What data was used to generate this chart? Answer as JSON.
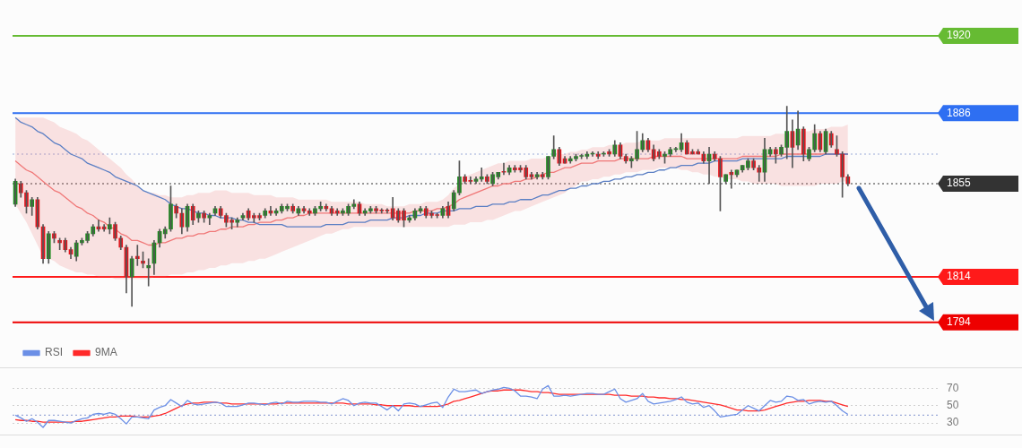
{
  "chart_data": [
    {
      "type": "candlestick",
      "categories": [
        null,
        null,
        null,
        null,
        null,
        null,
        null,
        null,
        null,
        null,
        null,
        null,
        null,
        null,
        null,
        null,
        null,
        null,
        null,
        null,
        null,
        null,
        null,
        null,
        null,
        null,
        null,
        null,
        null,
        null,
        null,
        null,
        null,
        null,
        null,
        null,
        null,
        null,
        null,
        null,
        null,
        null,
        null,
        null,
        null,
        null,
        null,
        null,
        null,
        null,
        null,
        null,
        null,
        null,
        null,
        null,
        null,
        null,
        null,
        null,
        null,
        null,
        null,
        null,
        null,
        null,
        null,
        null,
        null,
        null,
        null,
        null,
        null,
        null,
        null,
        null,
        null,
        null,
        null,
        null,
        null,
        null,
        null,
        null,
        null,
        null,
        null,
        null,
        null,
        null,
        null,
        null,
        null,
        null,
        null,
        null,
        null,
        null,
        null,
        null,
        null,
        null,
        null,
        null,
        null,
        null,
        null,
        null,
        null,
        null,
        null,
        null,
        null,
        null,
        null,
        null,
        null,
        null,
        null,
        null,
        null,
        null,
        null,
        null,
        null,
        null,
        null,
        null,
        null,
        null,
        null,
        null,
        null,
        null,
        null,
        null,
        null,
        null,
        null,
        null,
        null,
        null,
        null,
        null,
        null,
        null,
        null,
        null,
        null,
        null,
        null
      ],
      "ohlc": [
        [
          1846,
          1857,
          1845,
          1856
        ],
        [
          1855,
          1856,
          1849,
          1851
        ],
        [
          1851,
          1852,
          1842,
          1845
        ],
        [
          1845,
          1849,
          1841,
          1848
        ],
        [
          1848,
          1849,
          1835,
          1836
        ],
        [
          1836,
          1837,
          1820,
          1822
        ],
        [
          1822,
          1834,
          1820,
          1833
        ],
        [
          1833,
          1834,
          1829,
          1831
        ],
        [
          1830,
          1831,
          1826,
          1829
        ],
        [
          1830,
          1831,
          1825,
          1826
        ],
        [
          1826,
          1827,
          1822,
          1824
        ],
        [
          1823,
          1830,
          1821,
          1829
        ],
        [
          1829,
          1831,
          1828,
          1830
        ],
        [
          1830,
          1834,
          1829,
          1833
        ],
        [
          1833,
          1837,
          1832,
          1836
        ],
        [
          1836,
          1839,
          1834,
          1835
        ],
        [
          1836,
          1837,
          1834,
          1835
        ],
        [
          1835,
          1840,
          1833,
          1837
        ],
        [
          1837,
          1838,
          1830,
          1831
        ],
        [
          1831,
          1832,
          1826,
          1827
        ],
        [
          1827,
          1828,
          1807,
          1814
        ],
        [
          1814,
          1823,
          1801,
          1822
        ],
        [
          1823,
          1828,
          1819,
          1822
        ],
        [
          1821,
          1825,
          1818,
          1820
        ],
        [
          1818,
          1822,
          1810,
          1819
        ],
        [
          1820,
          1830,
          1815,
          1829
        ],
        [
          1829,
          1835,
          1827,
          1834
        ],
        [
          1833,
          1836,
          1831,
          1835
        ],
        [
          1835,
          1854,
          1834,
          1846
        ],
        [
          1845,
          1846,
          1840,
          1842
        ],
        [
          1842,
          1844,
          1833,
          1836
        ],
        [
          1836,
          1846,
          1834,
          1845
        ],
        [
          1845,
          1846,
          1837,
          1839
        ],
        [
          1840,
          1843,
          1838,
          1842
        ],
        [
          1842,
          1843,
          1838,
          1840
        ],
        [
          1840,
          1842,
          1837,
          1841
        ],
        [
          1842,
          1845,
          1841,
          1844
        ],
        [
          1844,
          1845,
          1840,
          1841
        ],
        [
          1841,
          1842,
          1836,
          1838
        ],
        [
          1839,
          1840,
          1835,
          1838
        ],
        [
          1838,
          1840,
          1836,
          1839
        ],
        [
          1840,
          1842,
          1839,
          1841
        ],
        [
          1843,
          1844,
          1839,
          1840
        ],
        [
          1841,
          1842,
          1838,
          1840
        ],
        [
          1841,
          1842,
          1839,
          1840
        ],
        [
          1841,
          1844,
          1840,
          1843
        ],
        [
          1843,
          1845,
          1841,
          1842
        ],
        [
          1842,
          1844,
          1841,
          1843
        ],
        [
          1843,
          1846,
          1842,
          1845
        ],
        [
          1844,
          1846,
          1843,
          1845
        ],
        [
          1845,
          1846,
          1842,
          1843
        ],
        [
          1842,
          1845,
          1841,
          1844
        ],
        [
          1844,
          1845,
          1842,
          1843
        ],
        [
          1843,
          1844,
          1841,
          1842
        ],
        [
          1842,
          1845,
          1841,
          1844
        ],
        [
          1844,
          1847,
          1843,
          1845
        ],
        [
          1845,
          1846,
          1843,
          1844
        ],
        [
          1844,
          1845,
          1841,
          1842
        ],
        [
          1843,
          1844,
          1841,
          1842
        ],
        [
          1842,
          1844,
          1841,
          1843
        ],
        [
          1842,
          1846,
          1841,
          1845
        ],
        [
          1845,
          1848,
          1844,
          1846
        ],
        [
          1846,
          1847,
          1841,
          1842
        ],
        [
          1842,
          1844,
          1841,
          1843
        ],
        [
          1843,
          1845,
          1842,
          1844
        ],
        [
          1844,
          1845,
          1842,
          1843
        ],
        [
          1843,
          1844,
          1842,
          1843
        ],
        [
          1843,
          1844,
          1842,
          1843
        ],
        [
          1844,
          1849,
          1839,
          1840
        ],
        [
          1843,
          1844,
          1838,
          1839
        ],
        [
          1843,
          1844,
          1836,
          1839
        ],
        [
          1839,
          1841,
          1838,
          1840
        ],
        [
          1840,
          1844,
          1839,
          1843
        ],
        [
          1843,
          1845,
          1842,
          1844
        ],
        [
          1844,
          1845,
          1840,
          1841
        ],
        [
          1842,
          1843,
          1840,
          1841
        ],
        [
          1841,
          1842,
          1840,
          1841
        ],
        [
          1841,
          1845,
          1840,
          1844
        ],
        [
          1845,
          1847,
          1840,
          1841
        ],
        [
          1844,
          1852,
          1843,
          1851
        ],
        [
          1851,
          1865,
          1850,
          1858
        ],
        [
          1858,
          1859,
          1855,
          1856
        ],
        [
          1856,
          1858,
          1855,
          1856
        ],
        [
          1856,
          1858,
          1855,
          1857
        ],
        [
          1857,
          1862,
          1856,
          1858
        ],
        [
          1858,
          1859,
          1855,
          1856
        ],
        [
          1855,
          1860,
          1854,
          1859
        ],
        [
          1858,
          1860,
          1857,
          1860
        ],
        [
          1860,
          1864,
          1859,
          1860
        ],
        [
          1860,
          1863,
          1859,
          1862
        ],
        [
          1862,
          1863,
          1860,
          1861
        ],
        [
          1862,
          1863,
          1860,
          1861
        ],
        [
          1862,
          1863,
          1857,
          1858
        ],
        [
          1859,
          1860,
          1857,
          1858
        ],
        [
          1858,
          1860,
          1857,
          1859
        ],
        [
          1859,
          1860,
          1857,
          1858
        ],
        [
          1858,
          1867,
          1857,
          1867
        ],
        [
          1867,
          1876,
          1866,
          1870
        ],
        [
          1870,
          1871,
          1863,
          1864
        ],
        [
          1866,
          1867,
          1864,
          1864
        ],
        [
          1865,
          1867,
          1864,
          1866
        ],
        [
          1866,
          1868,
          1865,
          1867
        ],
        [
          1867,
          1868,
          1866,
          1867
        ],
        [
          1867,
          1869,
          1866,
          1868
        ],
        [
          1868,
          1869,
          1867,
          1868
        ],
        [
          1868,
          1869,
          1866,
          1867
        ],
        [
          1868,
          1869,
          1867,
          1868
        ],
        [
          1869,
          1870,
          1867,
          1868
        ],
        [
          1868,
          1874,
          1867,
          1872
        ],
        [
          1872,
          1873,
          1866,
          1867
        ],
        [
          1867,
          1868,
          1864,
          1865
        ],
        [
          1865,
          1867,
          1862,
          1866
        ],
        [
          1866,
          1878,
          1865,
          1870
        ],
        [
          1870,
          1877,
          1869,
          1874
        ],
        [
          1874,
          1875,
          1869,
          1870
        ],
        [
          1870,
          1872,
          1865,
          1866
        ],
        [
          1869,
          1870,
          1866,
          1867
        ],
        [
          1867,
          1869,
          1864,
          1868
        ],
        [
          1868,
          1871,
          1867,
          1870
        ],
        [
          1870,
          1871,
          1869,
          1870
        ],
        [
          1870,
          1877,
          1869,
          1873
        ],
        [
          1873,
          1874,
          1868,
          1868
        ],
        [
          1869,
          1870,
          1868,
          1868
        ],
        [
          1869,
          1870,
          1868,
          1868
        ],
        [
          1868,
          1869,
          1864,
          1865
        ],
        [
          1865,
          1871,
          1855,
          1868
        ],
        [
          1868,
          1869,
          1865,
          1866
        ],
        [
          1866,
          1867,
          1843,
          1858
        ],
        [
          1856,
          1859,
          1855,
          1859
        ],
        [
          1860,
          1861,
          1853,
          1859
        ],
        [
          1859,
          1861,
          1858,
          1861
        ],
        [
          1861,
          1863,
          1860,
          1863
        ],
        [
          1862,
          1866,
          1861,
          1865
        ],
        [
          1865,
          1866,
          1861,
          1862
        ],
        [
          1862,
          1863,
          1856,
          1860
        ],
        [
          1860,
          1875,
          1856,
          1870
        ],
        [
          1868,
          1871,
          1867,
          1870
        ],
        [
          1870,
          1871,
          1864,
          1868
        ],
        [
          1868,
          1872,
          1867,
          1871
        ],
        [
          1871,
          1889,
          1866,
          1878
        ],
        [
          1878,
          1883,
          1862,
          1871
        ],
        [
          1872,
          1887,
          1870,
          1879
        ],
        [
          1879,
          1880,
          1865,
          1868
        ],
        [
          1866,
          1871,
          1865,
          1870
        ],
        [
          1870,
          1881,
          1869,
          1877
        ],
        [
          1877,
          1878,
          1869,
          1870
        ],
        [
          1869,
          1879,
          1868,
          1878
        ],
        [
          1877,
          1878,
          1871,
          1872
        ],
        [
          1870,
          1876,
          1867,
          1868
        ],
        [
          1868,
          1869,
          1849,
          1858
        ],
        [
          1858,
          1859,
          1854,
          1855
        ]
      ],
      "colors": [
        "#1e8c1e",
        "#e8141c",
        "#e8141c",
        "#1e8c1e",
        "#e8141c",
        "#e8141c",
        "#1e8c1e",
        "#e8141c",
        "#e8141c",
        "#e8141c",
        "#e8141c",
        "#1e8c1e",
        "#1e8c1e",
        "#1e8c1e",
        "#1e8c1e",
        "#e8141c",
        "#e8141c",
        "#1e8c1e",
        "#e8141c",
        "#e8141c",
        "#e8141c",
        "#1e8c1e",
        "#e8141c",
        "#e8141c",
        "#1e8c1e",
        "#1e8c1e",
        "#1e8c1e",
        "#1e8c1e",
        "#1e8c1e",
        "#e8141c",
        "#e8141c",
        "#1e8c1e",
        "#e8141c",
        "#1e8c1e",
        "#e8141c",
        "#1e8c1e",
        "#1e8c1e",
        "#e8141c",
        "#e8141c",
        "#e8141c",
        "#1e8c1e",
        "#1e8c1e",
        "#e8141c",
        "#e8141c",
        "#e8141c",
        "#1e8c1e",
        "#e8141c",
        "#1e8c1e",
        "#1e8c1e",
        "#1e8c1e",
        "#e8141c",
        "#1e8c1e",
        "#e8141c",
        "#e8141c",
        "#1e8c1e",
        "#1e8c1e",
        "#e8141c",
        "#e8141c",
        "#e8141c",
        "#1e8c1e",
        "#1e8c1e",
        "#1e8c1e",
        "#e8141c",
        "#1e8c1e",
        "#1e8c1e",
        "#e8141c",
        "#e8141c",
        "#e8141c",
        "#e8141c",
        "#e8141c",
        "#e8141c",
        "#1e8c1e",
        "#1e8c1e",
        "#1e8c1e",
        "#e8141c",
        "#e8141c",
        "#e8141c",
        "#1e8c1e",
        "#e8141c",
        "#1e8c1e",
        "#1e8c1e",
        "#e8141c",
        "#e8141c",
        "#1e8c1e",
        "#1e8c1e",
        "#e8141c",
        "#1e8c1e",
        "#1e8c1e",
        "#e8141c",
        "#1e8c1e",
        "#e8141c",
        "#e8141c",
        "#e8141c",
        "#e8141c",
        "#1e8c1e",
        "#e8141c",
        "#1e8c1e",
        "#1e8c1e",
        "#e8141c",
        "#e8141c",
        "#1e8c1e",
        "#1e8c1e",
        "#1e8c1e",
        "#1e8c1e",
        "#1e8c1e",
        "#e8141c",
        "#1e8c1e",
        "#e8141c",
        "#1e8c1e",
        "#e8141c",
        "#e8141c",
        "#1e8c1e",
        "#1e8c1e",
        "#1e8c1e",
        "#e8141c",
        "#e8141c",
        "#e8141c",
        "#1e8c1e",
        "#1e8c1e",
        "#1e8c1e",
        "#1e8c1e",
        "#e8141c",
        "#e8141c",
        "#e8141c",
        "#e8141c",
        "#1e8c1e",
        "#e8141c",
        "#e8141c",
        "#1e8c1e",
        "#e8141c",
        "#1e8c1e",
        "#1e8c1e",
        "#1e8c1e",
        "#e8141c",
        "#e8141c",
        "#1e8c1e",
        "#1e8c1e",
        "#e8141c",
        "#1e8c1e",
        "#1e8c1e",
        "#e8141c",
        "#1e8c1e",
        "#e8141c",
        "#1e8c1e",
        "#1e8c1e",
        "#e8141c",
        "#1e8c1e",
        "#e8141c",
        "#e8141c",
        "#e8141c",
        "#e8141c"
      ],
      "series": [
        {
          "type": "line",
          "color": "#5b7fc4",
          "values": [
            1884,
            1882,
            1881,
            1880,
            1878,
            1877,
            1875,
            1873,
            1872,
            1870,
            1868,
            1867,
            1866,
            1864,
            1863,
            1862,
            1861,
            1860,
            1858,
            1857,
            1856,
            1855,
            1854,
            1852,
            1851,
            1850,
            1849,
            1848,
            1846,
            1845,
            1844,
            1844,
            1843,
            1842,
            1842,
            1841,
            1841,
            1840,
            1840,
            1840,
            1839,
            1839,
            1838,
            1838,
            1837,
            1837,
            1837,
            1837,
            1837,
            1836,
            1836,
            1836,
            1836,
            1836,
            1836,
            1836,
            1837,
            1837,
            1837,
            1837,
            1838,
            1838,
            1838,
            1838,
            1839,
            1839,
            1839,
            1839,
            1840,
            1840,
            1840,
            1841,
            1841,
            1841,
            1842,
            1842,
            1842,
            1843,
            1843,
            1843,
            1844,
            1844,
            1844,
            1845,
            1845,
            1845,
            1846,
            1846,
            1846,
            1847,
            1847,
            1848,
            1848,
            1848,
            1849,
            1850,
            1850,
            1851,
            1852,
            1852,
            1853,
            1853,
            1854,
            1854,
            1855,
            1855,
            1856,
            1856,
            1857,
            1857,
            1858,
            1858,
            1859,
            1859,
            1860,
            1860,
            1861,
            1861,
            1862,
            1862,
            1863,
            1863,
            1863,
            1864,
            1864,
            1864,
            1865,
            1865,
            1865,
            1865,
            1865,
            1866,
            1866,
            1866,
            1866,
            1866,
            1866,
            1866,
            1866,
            1867,
            1867,
            1867,
            1867,
            1867,
            1867,
            1867,
            1868,
            1868,
            1868,
            1868,
            1868
          ]
        },
        {
          "type": "line",
          "color": "#f07878",
          "values": [
            1865,
            1863,
            1861,
            1860,
            1858,
            1856,
            1854,
            1852,
            1851,
            1849,
            1847,
            1845,
            1844,
            1842,
            1841,
            1839,
            1838,
            1836,
            1835,
            1833,
            1832,
            1830,
            1830,
            1829,
            1828,
            1828,
            1829,
            1829,
            1830,
            1831,
            1831,
            1832,
            1832,
            1833,
            1833,
            1834,
            1834,
            1835,
            1835,
            1836,
            1836,
            1836,
            1837,
            1837,
            1838,
            1838,
            1838,
            1839,
            1839,
            1840,
            1840,
            1841,
            1841,
            1842,
            1842,
            1842,
            1842,
            1842,
            1842,
            1842,
            1842,
            1842,
            1842,
            1842,
            1842,
            1842,
            1842,
            1842,
            1842,
            1842,
            1842,
            1842,
            1843,
            1843,
            1843,
            1843,
            1844,
            1844,
            1845,
            1846,
            1848,
            1849,
            1850,
            1851,
            1852,
            1853,
            1854,
            1854,
            1855,
            1855,
            1856,
            1856,
            1857,
            1857,
            1858,
            1859,
            1860,
            1860,
            1861,
            1862,
            1862,
            1863,
            1864,
            1864,
            1864,
            1865,
            1865,
            1865,
            1865,
            1866,
            1866,
            1866,
            1866,
            1866,
            1866,
            1867,
            1867,
            1867,
            1867,
            1867,
            1867,
            1866,
            1866,
            1866,
            1866,
            1866,
            1866,
            1866,
            1866,
            1866,
            1866,
            1867,
            1867,
            1867,
            1867,
            1867,
            1867,
            1867,
            1868,
            1868,
            1868,
            1868,
            1868,
            1868,
            1868,
            1868,
            1868,
            1868,
            1868,
            1868,
            1868
          ],
          "upper": [
            1884,
            1884,
            1884,
            1884,
            1884,
            1884,
            1883,
            1882,
            1880,
            1879,
            1878,
            1877,
            1875,
            1874,
            1872,
            1870,
            1868,
            1866,
            1864,
            1862,
            1859,
            1857,
            1854,
            1852,
            1851,
            1851,
            1850,
            1850,
            1849,
            1849,
            1849,
            1850,
            1850,
            1851,
            1851,
            1851,
            1852,
            1852,
            1852,
            1851,
            1851,
            1851,
            1851,
            1850,
            1850,
            1850,
            1850,
            1849,
            1849,
            1849,
            1849,
            1848,
            1848,
            1848,
            1848,
            1848,
            1848,
            1847,
            1847,
            1847,
            1847,
            1847,
            1847,
            1846,
            1846,
            1846,
            1846,
            1845,
            1845,
            1845,
            1845,
            1846,
            1846,
            1846,
            1847,
            1847,
            1847,
            1848,
            1850,
            1853,
            1855,
            1858,
            1859,
            1860,
            1861,
            1862,
            1863,
            1864,
            1864,
            1865,
            1865,
            1865,
            1865,
            1866,
            1866,
            1866,
            1867,
            1867,
            1868,
            1868,
            1869,
            1869,
            1870,
            1870,
            1871,
            1871,
            1871,
            1872,
            1872,
            1872,
            1873,
            1873,
            1873,
            1874,
            1874,
            1874,
            1874,
            1875,
            1875,
            1875,
            1875,
            1875,
            1875,
            1875,
            1875,
            1875,
            1875,
            1875,
            1875,
            1875,
            1875,
            1876,
            1876,
            1876,
            1876,
            1876,
            1876,
            1877,
            1877,
            1877,
            1877,
            1878,
            1878,
            1878,
            1879,
            1879,
            1879,
            1880,
            1880,
            1880,
            1881
          ],
          "lower": [
            1846,
            1842,
            1838,
            1833,
            1828,
            1823,
            1822,
            1821,
            1819,
            1818,
            1817,
            1816,
            1816,
            1815,
            1815,
            1814,
            1814,
            1814,
            1813,
            1813,
            1813,
            1813,
            1813,
            1813,
            1813,
            1814,
            1814,
            1814,
            1815,
            1815,
            1815,
            1816,
            1816,
            1817,
            1817,
            1818,
            1818,
            1819,
            1819,
            1820,
            1820,
            1820,
            1821,
            1821,
            1822,
            1822,
            1823,
            1824,
            1825,
            1826,
            1827,
            1828,
            1829,
            1830,
            1831,
            1832,
            1833,
            1833,
            1834,
            1835,
            1835,
            1836,
            1836,
            1836,
            1836,
            1836,
            1836,
            1836,
            1836,
            1836,
            1836,
            1836,
            1836,
            1836,
            1836,
            1836,
            1836,
            1836,
            1836,
            1837,
            1837,
            1837,
            1838,
            1838,
            1838,
            1839,
            1839,
            1840,
            1841,
            1842,
            1843,
            1843,
            1844,
            1845,
            1846,
            1847,
            1848,
            1849,
            1850,
            1851,
            1853,
            1854,
            1856,
            1856,
            1857,
            1857,
            1858,
            1858,
            1859,
            1859,
            1860,
            1860,
            1860,
            1861,
            1861,
            1861,
            1862,
            1862,
            1862,
            1862,
            1861,
            1861,
            1860,
            1860,
            1859,
            1859,
            1858,
            1858,
            1857,
            1857,
            1857,
            1856,
            1856,
            1855,
            1855,
            1855,
            1855,
            1855,
            1854,
            1854,
            1854,
            1854,
            1854,
            1854,
            1854,
            1855,
            1855,
            1855,
            1855,
            1856,
            1856
          ]
        }
      ],
      "ylim": [
        1794,
        1920
      ],
      "yticks": [
        1794,
        1814,
        1855,
        1886,
        1920
      ],
      "tick_labels": "y",
      "ref_lines": [
        {
          "axis": "y",
          "value": 1920,
          "color": "#66bb33",
          "line_style": "solid"
        },
        {
          "axis": "y",
          "value": 1886,
          "color": "#2e6ff2",
          "line_style": "solid"
        },
        {
          "axis": "y",
          "value": 1868,
          "color": "#9aa9d8",
          "line_style": "dotted"
        },
        {
          "axis": "y",
          "value": 1855,
          "color": "#333333",
          "line_style": "dotted"
        },
        {
          "axis": "y",
          "value": 1814,
          "color": "#ff1a1a",
          "line_style": "solid"
        },
        {
          "axis": "y",
          "value": 1794,
          "color": "#ee0000",
          "line_style": "solid"
        }
      ]
    },
    {
      "type": "line",
      "categories": [
        null,
        null,
        null,
        null,
        null,
        null,
        null,
        null,
        null,
        null,
        null,
        null,
        null,
        null,
        null,
        null,
        null,
        null,
        null,
        null,
        null,
        null,
        null,
        null,
        null,
        null,
        null,
        null,
        null,
        null,
        null,
        null,
        null,
        null,
        null,
        null,
        null,
        null,
        null,
        null,
        null,
        null,
        null,
        null,
        null,
        null,
        null,
        null,
        null,
        null,
        null,
        null,
        null,
        null,
        null,
        null,
        null,
        null,
        null,
        null,
        null,
        null,
        null,
        null,
        null,
        null,
        null,
        null,
        null,
        null,
        null,
        null,
        null,
        null,
        null,
        null,
        null,
        null,
        null,
        null,
        null,
        null,
        null,
        null,
        null,
        null,
        null,
        null,
        null,
        null,
        null,
        null,
        null,
        null,
        null,
        null,
        null,
        null,
        null,
        null,
        null,
        null,
        null,
        null,
        null,
        null,
        null,
        null,
        null,
        null,
        null,
        null,
        null,
        null,
        null,
        null,
        null,
        null,
        null,
        null,
        null,
        null,
        null,
        null,
        null,
        null,
        null,
        null,
        null,
        null,
        null,
        null,
        null,
        null,
        null,
        null,
        null,
        null,
        null,
        null,
        null,
        null,
        null,
        null,
        null,
        null,
        null,
        null,
        null,
        null,
        null
      ],
      "series": [
        {
          "name": "RSI",
          "color": "#6b8fe6",
          "values": [
            39,
            36,
            32,
            35,
            31,
            25,
            33,
            33,
            32,
            31,
            30,
            33,
            35,
            36,
            40,
            41,
            40,
            42,
            40,
            35,
            29,
            37,
            37,
            36,
            35,
            45,
            48,
            50,
            57,
            53,
            49,
            56,
            52,
            51,
            52,
            53,
            54,
            53,
            49,
            49,
            49,
            51,
            53,
            53,
            52,
            51,
            53,
            54,
            52,
            55,
            54,
            54,
            55,
            55,
            55,
            54,
            54,
            52,
            55,
            58,
            56,
            50,
            53,
            54,
            53,
            53,
            49,
            45,
            50,
            44,
            52,
            53,
            52,
            49,
            51,
            53,
            54,
            48,
            60,
            69,
            66,
            66,
            67,
            68,
            64,
            66,
            68,
            69,
            71,
            70,
            67,
            61,
            61,
            60,
            58,
            69,
            73,
            61,
            61,
            62,
            61,
            62,
            63,
            64,
            64,
            63,
            63,
            66,
            69,
            58,
            54,
            56,
            58,
            64,
            55,
            52,
            53,
            54,
            55,
            57,
            60,
            54,
            52,
            53,
            48,
            50,
            44,
            37,
            38,
            39,
            40,
            45,
            50,
            47,
            44,
            50,
            56,
            54,
            55,
            61,
            60,
            56,
            57,
            52,
            54,
            55,
            54,
            55,
            50,
            44,
            40
          ]
        },
        {
          "name": "9MA",
          "color": "#ff2a2a",
          "values": [
            34,
            33,
            33,
            32,
            32,
            31,
            31,
            31,
            31,
            31,
            31,
            32,
            32,
            33,
            34,
            35,
            36,
            37,
            37,
            38,
            38,
            38,
            37,
            37,
            37,
            38,
            39,
            41,
            44,
            47,
            50,
            52,
            53,
            53,
            54,
            54,
            54,
            53,
            53,
            52,
            52,
            52,
            52,
            52,
            52,
            52,
            52,
            52,
            53,
            53,
            53,
            53,
            53,
            53,
            53,
            53,
            53,
            53,
            53,
            53,
            52,
            52,
            52,
            52,
            52,
            51,
            51,
            50,
            50,
            50,
            50,
            50,
            49,
            49,
            49,
            49,
            49,
            50,
            52,
            55,
            56,
            58,
            60,
            62,
            64,
            66,
            67,
            67,
            68,
            68,
            68,
            68,
            67,
            66,
            66,
            65,
            65,
            64,
            63,
            63,
            63,
            63,
            63,
            63,
            63,
            63,
            63,
            63,
            62,
            62,
            62,
            61,
            61,
            61,
            60,
            60,
            59,
            59,
            58,
            58,
            57,
            57,
            56,
            55,
            54,
            53,
            52,
            51,
            49,
            47,
            45,
            45,
            44,
            44,
            44,
            45,
            47,
            49,
            51,
            53,
            54,
            55,
            55,
            56,
            56,
            56,
            55,
            55,
            53,
            51,
            49
          ]
        }
      ],
      "ylim": [
        17,
        94
      ],
      "yticks": [
        30,
        50,
        70
      ],
      "grid": "y",
      "legend": "top left",
      "tick_labels": "y",
      "ref_lines": [
        {
          "axis": "y",
          "value": 39,
          "color": "#9aa9d8",
          "line_style": "dotted"
        }
      ]
    }
  ]
}
